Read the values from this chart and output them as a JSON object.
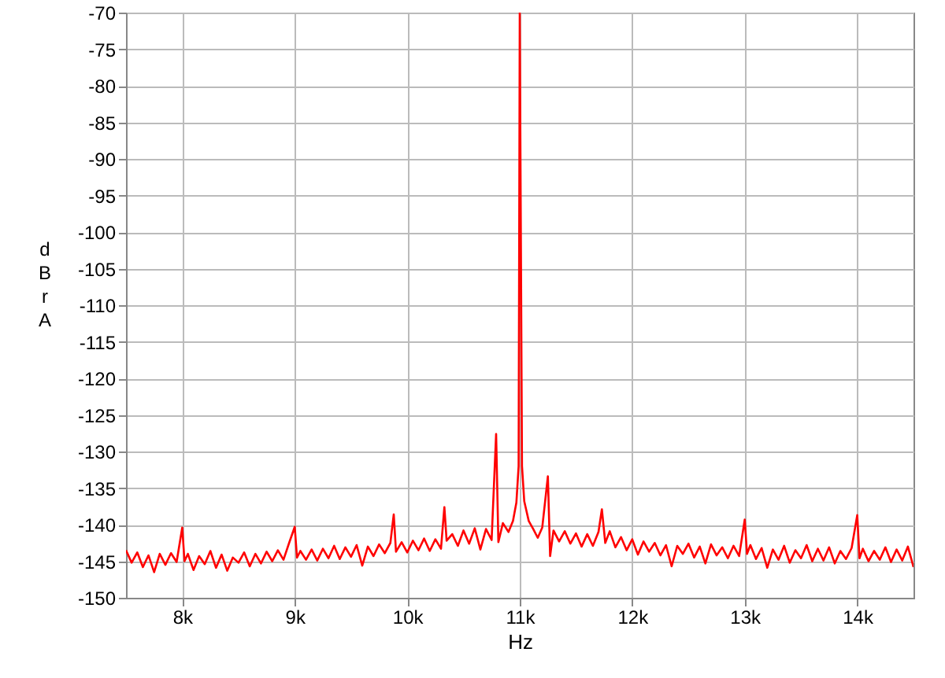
{
  "chart_data": {
    "type": "line",
    "xlabel": "Hz",
    "ylabel": "dBr A",
    "x": [
      7500,
      7550,
      7600,
      7650,
      7700,
      7750,
      7800,
      7850,
      7900,
      7950,
      8000,
      8020,
      8050,
      8100,
      8150,
      8200,
      8250,
      8300,
      8350,
      8400,
      8450,
      8500,
      8550,
      8600,
      8650,
      8700,
      8750,
      8800,
      8850,
      8900,
      8950,
      9000,
      9020,
      9050,
      9100,
      9150,
      9200,
      9250,
      9300,
      9350,
      9400,
      9450,
      9500,
      9550,
      9600,
      9650,
      9700,
      9750,
      9800,
      9850,
      9880,
      9900,
      9950,
      10000,
      10050,
      10100,
      10150,
      10200,
      10250,
      10300,
      10330,
      10350,
      10400,
      10450,
      10500,
      10550,
      10600,
      10650,
      10700,
      10750,
      10790,
      10810,
      10850,
      10900,
      10940,
      10970,
      10990,
      11000,
      11020,
      11040,
      11080,
      11120,
      11160,
      11200,
      11250,
      11270,
      11300,
      11350,
      11400,
      11450,
      11500,
      11550,
      11600,
      11650,
      11700,
      11730,
      11760,
      11800,
      11850,
      11900,
      11950,
      12000,
      12050,
      12100,
      12150,
      12200,
      12250,
      12300,
      12350,
      12400,
      12450,
      12500,
      12550,
      12600,
      12650,
      12700,
      12750,
      12800,
      12850,
      12900,
      12950,
      13000,
      13020,
      13050,
      13100,
      13150,
      13200,
      13250,
      13300,
      13350,
      13400,
      13450,
      13500,
      13550,
      13600,
      13650,
      13700,
      13750,
      13800,
      13850,
      13900,
      13950,
      14000,
      14020,
      14050,
      14100,
      14150,
      14200,
      14250,
      14300,
      14350,
      14400,
      14450,
      14500
    ],
    "series": [
      {
        "color": "#ff0000",
        "values": [
          -143.5,
          -145.2,
          -143.8,
          -145.8,
          -144.2,
          -146.5,
          -144.0,
          -145.5,
          -143.9,
          -145.1,
          -140.4,
          -145.0,
          -144.0,
          -146.2,
          -144.3,
          -145.4,
          -143.6,
          -145.9,
          -144.1,
          -146.3,
          -144.5,
          -145.2,
          -143.8,
          -145.7,
          -144.0,
          -145.3,
          -143.7,
          -145.0,
          -143.5,
          -144.8,
          -142.5,
          -140.3,
          -144.5,
          -143.6,
          -144.8,
          -143.4,
          -144.9,
          -143.3,
          -144.6,
          -142.9,
          -144.7,
          -143.1,
          -144.4,
          -142.8,
          -145.6,
          -143.0,
          -144.3,
          -142.7,
          -143.9,
          -142.5,
          -138.6,
          -143.7,
          -142.4,
          -143.8,
          -142.2,
          -143.5,
          -141.9,
          -143.6,
          -142.0,
          -143.3,
          -137.6,
          -142.2,
          -141.3,
          -142.9,
          -140.8,
          -142.6,
          -140.5,
          -143.4,
          -140.6,
          -142.1,
          -127.6,
          -142.4,
          -139.8,
          -141.0,
          -139.5,
          -137.0,
          -132.0,
          -70,
          -132.0,
          -136.8,
          -139.5,
          -140.6,
          -141.8,
          -140.4,
          -133.4,
          -144.3,
          -140.8,
          -142.3,
          -140.9,
          -142.6,
          -141.2,
          -143.0,
          -141.3,
          -142.9,
          -141.0,
          -137.9,
          -142.5,
          -140.9,
          -143.1,
          -141.7,
          -143.5,
          -142.0,
          -144.1,
          -142.3,
          -143.7,
          -142.5,
          -144.2,
          -142.8,
          -145.7,
          -142.9,
          -144.0,
          -142.6,
          -144.5,
          -143.0,
          -145.3,
          -142.7,
          -144.2,
          -143.1,
          -144.6,
          -142.9,
          -144.3,
          -139.3,
          -144.0,
          -142.8,
          -144.7,
          -143.2,
          -145.9,
          -143.4,
          -144.8,
          -142.9,
          -145.2,
          -143.5,
          -144.6,
          -142.8,
          -145.0,
          -143.3,
          -144.9,
          -143.1,
          -145.3,
          -143.6,
          -144.7,
          -143.2,
          -138.7,
          -144.6,
          -143.3,
          -145.0,
          -143.6,
          -144.8,
          -143.1,
          -145.1,
          -143.4,
          -144.9,
          -143.0,
          -145.8
        ]
      }
    ],
    "xlim": [
      7500,
      14500
    ],
    "xticks": [
      {
        "value": 8000,
        "label": "8k"
      },
      {
        "value": 9000,
        "label": "9k"
      },
      {
        "value": 10000,
        "label": "10k"
      },
      {
        "value": 11000,
        "label": "11k"
      },
      {
        "value": 12000,
        "label": "12k"
      },
      {
        "value": 13000,
        "label": "13k"
      },
      {
        "value": 14000,
        "label": "14k"
      }
    ],
    "ylim": [
      -150,
      -70
    ],
    "yticks": [
      -150,
      -145,
      -140,
      -135,
      -130,
      -125,
      -120,
      -115,
      -110,
      -105,
      -100,
      -95,
      -90,
      -85,
      -80,
      -75,
      -70
    ],
    "grid": true,
    "marker": "none",
    "line_style": "solid"
  }
}
